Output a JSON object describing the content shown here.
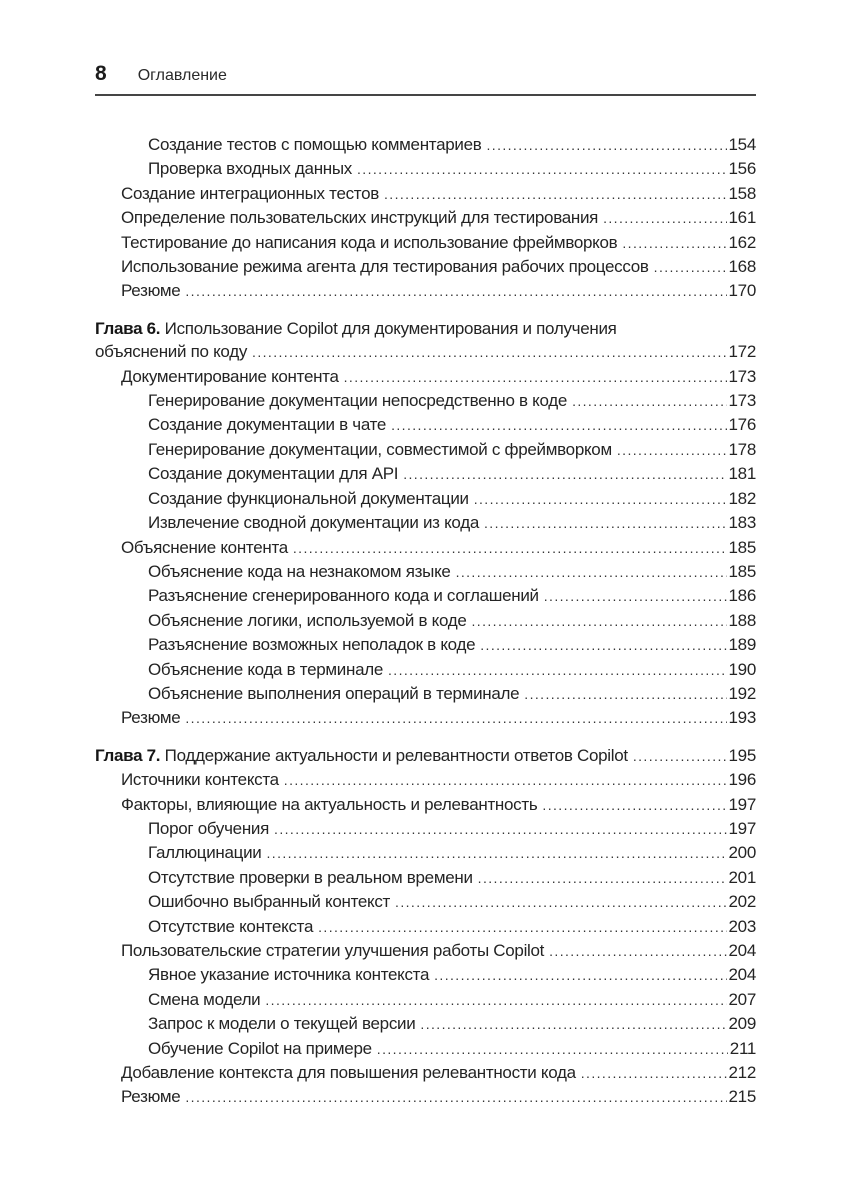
{
  "header": {
    "page_number": "8",
    "title": "Оглавление"
  },
  "colors": {
    "text": "#242424",
    "rule": "#454545",
    "dot_leader": "#333333",
    "background": "#ffffff"
  },
  "toc": {
    "entries": [
      {
        "level": 2,
        "text": "Создание тестов с помощью комментариев",
        "page": "154"
      },
      {
        "level": 2,
        "text": "Проверка входных данных",
        "page": "156"
      },
      {
        "level": 1,
        "text": "Создание интеграционных тестов",
        "page": "158"
      },
      {
        "level": 1,
        "text": "Определение пользовательских инструкций для тестирования",
        "page": "161"
      },
      {
        "level": 1,
        "text": "Тестирование до написания кода и использование фреймворков",
        "page": "162"
      },
      {
        "level": 1,
        "text": "Использование режима агента для тестирования рабочих процессов",
        "page": "168"
      },
      {
        "level": 1,
        "text": "Резюме",
        "page": "170"
      },
      {
        "level": 0,
        "gap_before": true,
        "prefix": "Глава 6.",
        "line1": "Использование Copilot для документирования и получения",
        "text": "объяснений по коду",
        "page": "172"
      },
      {
        "level": 1,
        "text": "Документирование контента",
        "page": "173"
      },
      {
        "level": 2,
        "text": "Генерирование документации непосредственно в коде",
        "page": "173"
      },
      {
        "level": 2,
        "text": "Создание документации в чате",
        "page": "176"
      },
      {
        "level": 2,
        "text": "Генерирование документации, совместимой с фреймворком",
        "page": "178"
      },
      {
        "level": 2,
        "text": "Создание документации для API",
        "page": "181"
      },
      {
        "level": 2,
        "text": "Создание функциональной документации",
        "page": "182"
      },
      {
        "level": 2,
        "text": "Извлечение сводной документации из кода",
        "page": "183"
      },
      {
        "level": 1,
        "text": "Объяснение контента",
        "page": "185"
      },
      {
        "level": 2,
        "text": "Объяснение кода на незнакомом языке",
        "page": "185"
      },
      {
        "level": 2,
        "text": "Разъяснение сгенерированного кода и соглашений",
        "page": "186"
      },
      {
        "level": 2,
        "text": "Объяснение логики, используемой в коде",
        "page": "188"
      },
      {
        "level": 2,
        "text": "Разъяснение возможных неполадок в коде",
        "page": "189"
      },
      {
        "level": 2,
        "text": "Объяснение кода в терминале",
        "page": "190"
      },
      {
        "level": 2,
        "text": "Объяснение выполнения операций в терминале",
        "page": "192"
      },
      {
        "level": 1,
        "text": "Резюме",
        "page": "193"
      },
      {
        "level": 0,
        "gap_before": true,
        "prefix": "Глава 7.",
        "text": "Поддержание актуальности и релевантности ответов Copilot",
        "page": "195"
      },
      {
        "level": 1,
        "text": "Источники контекста",
        "page": "196"
      },
      {
        "level": 1,
        "text": "Факторы, влияющие на актуальность и релевантность",
        "page": "197"
      },
      {
        "level": 2,
        "text": "Порог обучения",
        "page": "197"
      },
      {
        "level": 2,
        "text": "Галлюцинации",
        "page": "200"
      },
      {
        "level": 2,
        "text": "Отсутствие проверки в реальном времени",
        "page": "201"
      },
      {
        "level": 2,
        "text": "Ошибочно выбранный контекст",
        "page": "202"
      },
      {
        "level": 2,
        "text": "Отсутствие контекста",
        "page": "203"
      },
      {
        "level": 1,
        "text": "Пользовательские стратегии улучшения работы Copilot",
        "page": "204"
      },
      {
        "level": 2,
        "text": "Явное указание источника контекста",
        "page": "204"
      },
      {
        "level": 2,
        "text": "Смена модели",
        "page": "207"
      },
      {
        "level": 2,
        "text": "Запрос к модели о текущей версии",
        "page": "209"
      },
      {
        "level": 2,
        "text": "Обучение Copilot на примере",
        "page": "211"
      },
      {
        "level": 1,
        "text": "Добавление контекста для повышения релевантности кода",
        "page": "212"
      },
      {
        "level": 1,
        "text": "Резюме",
        "page": "215"
      }
    ]
  }
}
